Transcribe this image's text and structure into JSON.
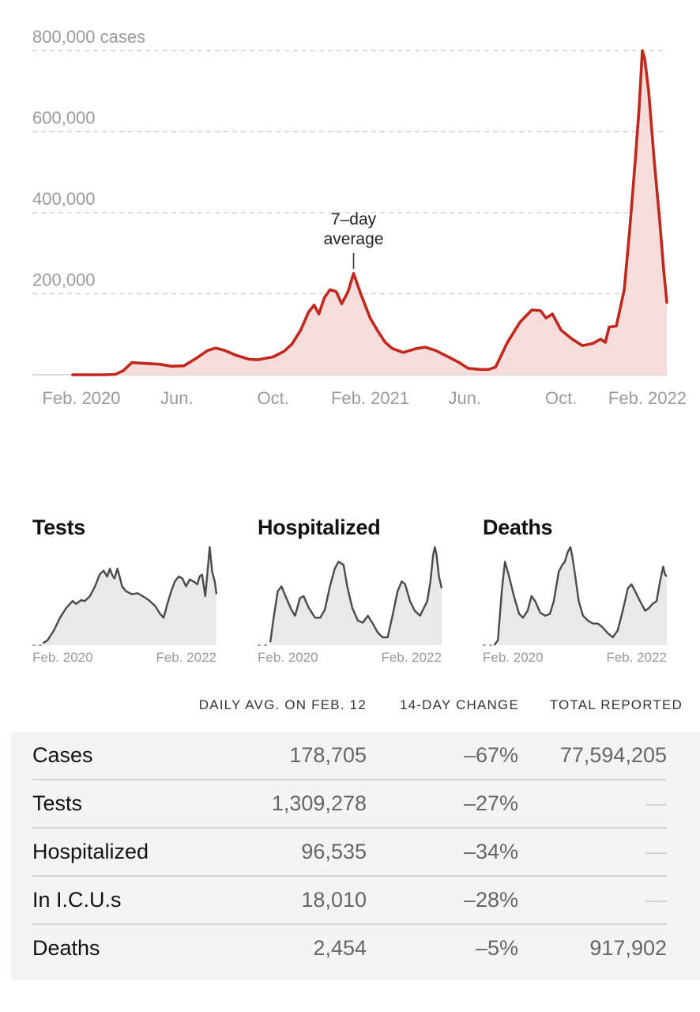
{
  "chart_data": [
    {
      "type": "area",
      "y_unit_label": "cases",
      "ylim": [
        0,
        800000
      ],
      "yticks": [
        200000,
        400000,
        600000,
        800000
      ],
      "ytick_labels": [
        "200,000",
        "400,000",
        "600,000",
        "800,000 cases"
      ],
      "grid": true,
      "colors": {
        "line": "#c0281e",
        "fill": "#f7dcdc"
      },
      "x_ticks": [
        {
          "date": "2020-02-01",
          "label": "Feb. 2020"
        },
        {
          "date": "2020-06-01",
          "label": "Jun."
        },
        {
          "date": "2020-10-01",
          "label": "Oct."
        },
        {
          "date": "2021-02-01",
          "label": "Feb. 2021"
        },
        {
          "date": "2021-06-01",
          "label": "Jun."
        },
        {
          "date": "2021-10-01",
          "label": "Oct."
        },
        {
          "date": "2022-02-01",
          "label": "Feb. 2022"
        }
      ],
      "annotation": {
        "text_line1": "7–day",
        "text_line2": "average",
        "date": "2021-01-11"
      },
      "series": [
        {
          "x": [
            "2020-01-21",
            "2020-03-01",
            "2020-03-15",
            "2020-03-25",
            "2020-04-05",
            "2020-04-20",
            "2020-05-10",
            "2020-05-25",
            "2020-06-10",
            "2020-06-25",
            "2020-07-10",
            "2020-07-20",
            "2020-08-01",
            "2020-08-15",
            "2020-09-01",
            "2020-09-12",
            "2020-10-01",
            "2020-10-15",
            "2020-10-25",
            "2020-11-05",
            "2020-11-15",
            "2020-11-22",
            "2020-11-28",
            "2020-12-05",
            "2020-12-12",
            "2020-12-20",
            "2020-12-27",
            "2021-01-04",
            "2021-01-11",
            "2021-01-20",
            "2021-02-01",
            "2021-02-10",
            "2021-02-20",
            "2021-03-01",
            "2021-03-15",
            "2021-04-01",
            "2021-04-12",
            "2021-04-25",
            "2021-05-10",
            "2021-05-25",
            "2021-06-05",
            "2021-06-20",
            "2021-07-01",
            "2021-07-10",
            "2021-07-25",
            "2021-08-10",
            "2021-08-25",
            "2021-09-05",
            "2021-09-12",
            "2021-09-20",
            "2021-10-01",
            "2021-10-15",
            "2021-10-28",
            "2021-11-10",
            "2021-11-20",
            "2021-11-26",
            "2021-12-01",
            "2021-12-10",
            "2021-12-20",
            "2021-12-27",
            "2022-01-03",
            "2022-01-08",
            "2022-01-12",
            "2022-01-15",
            "2022-01-20",
            "2022-01-27",
            "2022-02-03",
            "2022-02-08",
            "2022-02-12"
          ],
          "y": [
            0,
            0,
            1000,
            10000,
            30000,
            28000,
            26000,
            21000,
            22000,
            40000,
            60000,
            66000,
            60000,
            48000,
            38000,
            37000,
            44000,
            58000,
            76000,
            110000,
            155000,
            172000,
            150000,
            190000,
            210000,
            205000,
            175000,
            205000,
            250000,
            200000,
            140000,
            110000,
            80000,
            65000,
            55000,
            65000,
            68000,
            60000,
            45000,
            30000,
            16000,
            13000,
            13000,
            19000,
            80000,
            130000,
            160000,
            158000,
            140000,
            150000,
            110000,
            88000,
            72000,
            77000,
            88000,
            80000,
            118000,
            120000,
            210000,
            360000,
            530000,
            660000,
            800000,
            780000,
            700000,
            530000,
            380000,
            260000,
            178705
          ]
        }
      ]
    },
    {
      "type": "area",
      "title": "Tests",
      "x_tick_labels": [
        "Feb. 2020",
        "Feb. 2022"
      ],
      "colors": {
        "line": "#4a4a4a",
        "fill": "#e9e9e9"
      },
      "series": [
        {
          "x": [
            "2020-03-01",
            "2020-03-20",
            "2020-04-15",
            "2020-05-10",
            "2020-06-05",
            "2020-07-01",
            "2020-07-15",
            "2020-08-05",
            "2020-08-20",
            "2020-09-10",
            "2020-10-01",
            "2020-10-20",
            "2020-11-05",
            "2020-11-20",
            "2020-12-01",
            "2020-12-10",
            "2020-12-20",
            "2021-01-01",
            "2021-01-10",
            "2021-01-20",
            "2021-02-05",
            "2021-03-01",
            "2021-03-25",
            "2021-04-15",
            "2021-05-10",
            "2021-06-05",
            "2021-06-25",
            "2021-07-10",
            "2021-07-25",
            "2021-08-10",
            "2021-08-25",
            "2021-09-10",
            "2021-09-25",
            "2021-10-10",
            "2021-10-25",
            "2021-11-10",
            "2021-11-25",
            "2021-12-05",
            "2021-12-15",
            "2021-12-28",
            "2022-01-08",
            "2022-01-15",
            "2022-01-25",
            "2022-02-05",
            "2022-02-12"
          ],
          "y": [
            0.02,
            0.05,
            0.15,
            0.28,
            0.38,
            0.45,
            0.42,
            0.46,
            0.45,
            0.5,
            0.6,
            0.72,
            0.76,
            0.7,
            0.78,
            0.72,
            0.68,
            0.78,
            0.7,
            0.6,
            0.55,
            0.52,
            0.53,
            0.5,
            0.46,
            0.4,
            0.32,
            0.28,
            0.42,
            0.55,
            0.65,
            0.7,
            0.68,
            0.6,
            0.67,
            0.65,
            0.62,
            0.7,
            0.72,
            0.5,
            0.8,
            1.0,
            0.75,
            0.65,
            0.52
          ]
        }
      ]
    },
    {
      "type": "area",
      "title": "Hospitalized",
      "x_tick_labels": [
        "Feb. 2020",
        "Feb. 2022"
      ],
      "colors": {
        "line": "#4a4a4a",
        "fill": "#e9e9e9"
      },
      "series": [
        {
          "x": [
            "2020-03-10",
            "2020-03-25",
            "2020-04-10",
            "2020-04-25",
            "2020-05-15",
            "2020-06-05",
            "2020-06-20",
            "2020-07-10",
            "2020-07-25",
            "2020-08-15",
            "2020-09-10",
            "2020-10-01",
            "2020-10-20",
            "2020-11-10",
            "2020-11-30",
            "2020-12-15",
            "2021-01-05",
            "2021-01-20",
            "2021-02-10",
            "2021-03-05",
            "2021-03-25",
            "2021-04-15",
            "2021-05-05",
            "2021-05-25",
            "2021-06-15",
            "2021-07-05",
            "2021-07-25",
            "2021-08-15",
            "2021-09-01",
            "2021-09-15",
            "2021-10-05",
            "2021-10-25",
            "2021-11-15",
            "2021-12-01",
            "2021-12-15",
            "2021-12-28",
            "2022-01-08",
            "2022-01-15",
            "2022-01-22",
            "2022-02-01",
            "2022-02-12"
          ],
          "y": [
            0.03,
            0.3,
            0.55,
            0.6,
            0.48,
            0.36,
            0.3,
            0.48,
            0.5,
            0.38,
            0.28,
            0.28,
            0.36,
            0.6,
            0.78,
            0.85,
            0.82,
            0.6,
            0.38,
            0.25,
            0.23,
            0.3,
            0.22,
            0.13,
            0.08,
            0.08,
            0.3,
            0.55,
            0.65,
            0.62,
            0.45,
            0.35,
            0.3,
            0.38,
            0.45,
            0.65,
            0.92,
            1.0,
            0.92,
            0.7,
            0.58
          ]
        }
      ]
    },
    {
      "type": "area",
      "title": "Deaths",
      "x_tick_labels": [
        "Feb. 2020",
        "Feb. 2022"
      ],
      "colors": {
        "line": "#4a4a4a",
        "fill": "#e9e9e9"
      },
      "series": [
        {
          "x": [
            "2020-03-05",
            "2020-03-20",
            "2020-04-05",
            "2020-04-18",
            "2020-05-05",
            "2020-05-25",
            "2020-06-15",
            "2020-07-01",
            "2020-07-20",
            "2020-08-05",
            "2020-08-20",
            "2020-09-10",
            "2020-10-01",
            "2020-10-20",
            "2020-11-05",
            "2020-11-25",
            "2020-12-10",
            "2020-12-20",
            "2021-01-01",
            "2021-01-12",
            "2021-01-20",
            "2021-02-01",
            "2021-02-15",
            "2021-03-05",
            "2021-03-25",
            "2021-04-15",
            "2021-05-05",
            "2021-05-25",
            "2021-06-15",
            "2021-07-05",
            "2021-07-25",
            "2021-08-15",
            "2021-09-05",
            "2021-09-20",
            "2021-10-05",
            "2021-10-25",
            "2021-11-15",
            "2021-12-01",
            "2021-12-15",
            "2022-01-01",
            "2022-01-15",
            "2022-01-28",
            "2022-02-05",
            "2022-02-12"
          ],
          "y": [
            0.0,
            0.05,
            0.55,
            0.85,
            0.7,
            0.5,
            0.32,
            0.28,
            0.35,
            0.5,
            0.45,
            0.33,
            0.3,
            0.32,
            0.45,
            0.75,
            0.82,
            0.85,
            0.95,
            1.0,
            0.9,
            0.7,
            0.45,
            0.3,
            0.25,
            0.22,
            0.22,
            0.18,
            0.12,
            0.08,
            0.15,
            0.35,
            0.58,
            0.62,
            0.55,
            0.45,
            0.35,
            0.38,
            0.42,
            0.45,
            0.65,
            0.8,
            0.72,
            0.7
          ]
        }
      ]
    }
  ],
  "mini_charts": [
    {
      "title": "Tests",
      "tick_left": "Feb. 2020",
      "tick_right": "Feb. 2022"
    },
    {
      "title": "Hospitalized",
      "tick_left": "Feb. 2020",
      "tick_right": "Feb. 2022"
    },
    {
      "title": "Deaths",
      "tick_left": "Feb. 2020",
      "tick_right": "Feb. 2022"
    }
  ],
  "table": {
    "headers": {
      "avg": "DAILY AVG. ON FEB. 12",
      "change": "14-DAY CHANGE",
      "total": "TOTAL REPORTED"
    },
    "rows": [
      {
        "name": "Cases",
        "avg": "178,705",
        "change": "–67%",
        "total": "77,594,205"
      },
      {
        "name": "Tests",
        "avg": "1,309,278",
        "change": "–27%",
        "total": "—"
      },
      {
        "name": "Hospitalized",
        "avg": "96,535",
        "change": "–34%",
        "total": "—"
      },
      {
        "name": "In I.C.U.s",
        "avg": "18,010",
        "change": "–28%",
        "total": "—"
      },
      {
        "name": "Deaths",
        "avg": "2,454",
        "change": "–5%",
        "total": "917,902"
      }
    ]
  }
}
